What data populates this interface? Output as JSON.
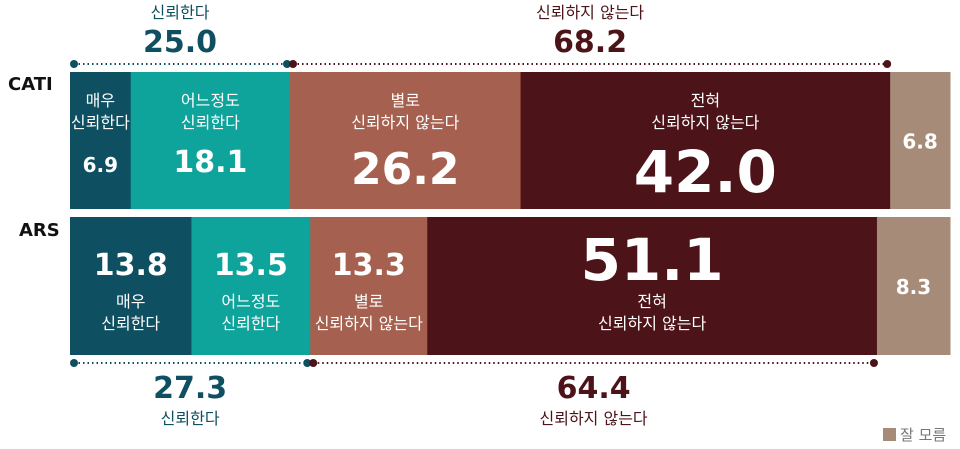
{
  "chart_data": {
    "type": "bar",
    "orientation": "horizontal-stacked",
    "categories": [
      "CATI",
      "ARS"
    ],
    "series": [
      {
        "name": "매우 신뢰한다",
        "values": [
          6.9,
          13.8
        ]
      },
      {
        "name": "어느정도 신뢰한다",
        "values": [
          18.1,
          13.5
        ]
      },
      {
        "name": "별로 신뢰하지 않는다",
        "values": [
          26.2,
          13.3
        ]
      },
      {
        "name": "전혀 신뢰하지 않는다",
        "values": [
          42.0,
          51.1
        ]
      },
      {
        "name": "잘 모름",
        "values": [
          6.8,
          8.3
        ]
      }
    ],
    "group_totals": {
      "CATI": {
        "label_trust": "신뢰한다",
        "trust": "25.0",
        "label_distrust": "신뢰하지 않는다",
        "distrust": "68.2"
      },
      "ARS": {
        "label_trust": "신뢰한다",
        "trust": "27.3",
        "label_distrust": "신뢰하지 않는다",
        "distrust": "64.4"
      }
    },
    "value_labels": {
      "CATI": [
        "6.9",
        "18.1",
        "26.2",
        "42.0",
        "6.8"
      ],
      "ARS": [
        "13.8",
        "13.5",
        "13.3",
        "51.1",
        "8.3"
      ]
    },
    "segment_text": {
      "CATI": [
        [
          "매우",
          "신뢰한다"
        ],
        [
          "어느정도",
          "신뢰한다"
        ],
        [
          "별로",
          "신뢰하지 않는다"
        ],
        [
          "전혀",
          "신뢰하지 않는다"
        ],
        []
      ],
      "ARS": [
        [
          "매우",
          "신뢰한다"
        ],
        [
          "어느정도",
          "신뢰한다"
        ],
        [
          "별로",
          "신뢰하지 않는다"
        ],
        [
          "전혀",
          "신뢰하지 않는다"
        ],
        []
      ]
    },
    "legend": {
      "label": "잘 모름",
      "placement": "bottom-right"
    },
    "colors": [
      "#0e4f61",
      "#0ea39b",
      "#a6604f",
      "#4c1318",
      "#a68b79"
    ],
    "trust_color": "#0e4f61",
    "distrust_color": "#4c1318"
  }
}
